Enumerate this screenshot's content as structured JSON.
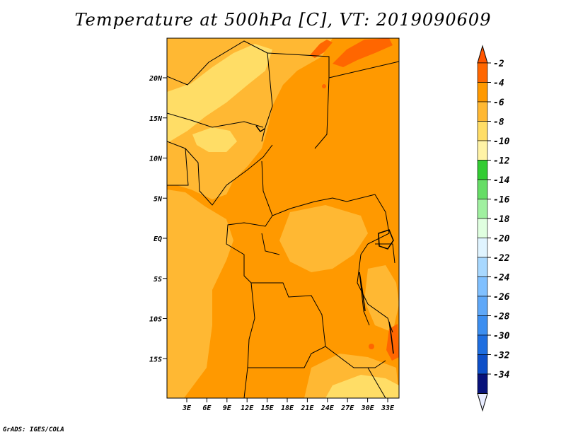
{
  "title": "Temperature at 500hPa [C], VT: 2019090609",
  "credit": "GrADS: IGES/COLA",
  "map": {
    "region": "Central Africa",
    "lat_labels": [
      "20N",
      "15N",
      "10N",
      "5N",
      "EQ",
      "5S",
      "10S",
      "15S"
    ],
    "lon_labels": [
      "3E",
      "6E",
      "9E",
      "12E",
      "15E",
      "18E",
      "21E",
      "24E",
      "27E",
      "30E",
      "33E"
    ],
    "dominant_range_c": "-6 to -4",
    "highest_range_c": "-4 to -2"
  },
  "legend": {
    "labels": [
      "-2",
      "-4",
      "-6",
      "-8",
      "-10",
      "-12",
      "-14",
      "-16",
      "-18",
      "-20",
      "-22",
      "-24",
      "-26",
      "-28",
      "-30",
      "-32",
      "-34"
    ],
    "colors": [
      "#ff6600",
      "#ff9900",
      "#ffb833",
      "#ffdd66",
      "#fff3a6",
      "#33cc33",
      "#66dd66",
      "#a0f0a0",
      "#e0ffe0",
      "#e0f4ff",
      "#a8d8ff",
      "#80c0ff",
      "#5fa8f8",
      "#3c8ef0",
      "#1e6ee0",
      "#0e4fc8",
      "#08127a"
    ],
    "top_arrow_color": "#ff5500",
    "bottom_arrow_color": "#e8ecff"
  }
}
